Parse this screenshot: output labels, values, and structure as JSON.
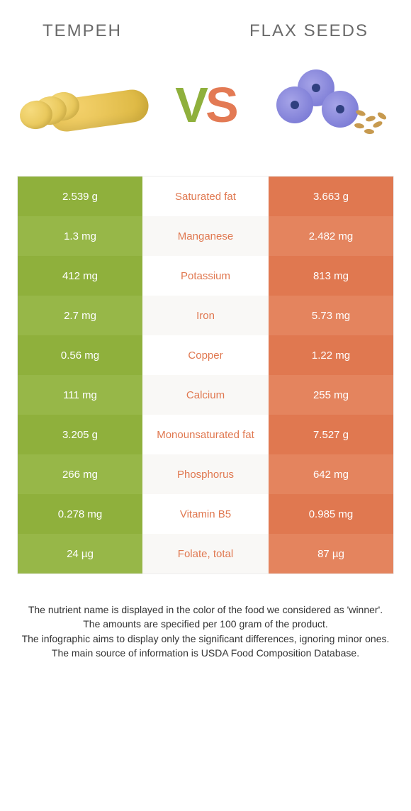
{
  "header": {
    "left_name": "Tempeh",
    "right_name": "Flax seeds"
  },
  "vs": {
    "v": "V",
    "s": "S"
  },
  "colors": {
    "left": "#8fb03c",
    "left_alt": "#97b748",
    "right": "#e07850",
    "right_alt": "#e4845e",
    "text": "#333333",
    "header_text": "#6a6a6a",
    "row_alt_bg": "#f9f8f6",
    "border": "#eeeeee"
  },
  "table": {
    "rows": [
      {
        "left": "2.539 g",
        "label": "Saturated fat",
        "right": "3.663 g",
        "winner": "right"
      },
      {
        "left": "1.3 mg",
        "label": "Manganese",
        "right": "2.482 mg",
        "winner": "right"
      },
      {
        "left": "412 mg",
        "label": "Potassium",
        "right": "813 mg",
        "winner": "right"
      },
      {
        "left": "2.7 mg",
        "label": "Iron",
        "right": "5.73 mg",
        "winner": "right"
      },
      {
        "left": "0.56 mg",
        "label": "Copper",
        "right": "1.22 mg",
        "winner": "right"
      },
      {
        "left": "111 mg",
        "label": "Calcium",
        "right": "255 mg",
        "winner": "right"
      },
      {
        "left": "3.205 g",
        "label": "Monounsaturated fat",
        "right": "7.527 g",
        "winner": "right"
      },
      {
        "left": "266 mg",
        "label": "Phosphorus",
        "right": "642 mg",
        "winner": "right"
      },
      {
        "left": "0.278 mg",
        "label": "Vitamin B5",
        "right": "0.985 mg",
        "winner": "right"
      },
      {
        "left": "24 µg",
        "label": "Folate, total",
        "right": "87 µg",
        "winner": "right"
      }
    ]
  },
  "footer": {
    "line1": "The nutrient name is displayed in the color of the food we considered as 'winner'.",
    "line2": "The amounts are specified per 100 gram of the product.",
    "line3": "The infographic aims to display only the significant differences, ignoring minor ones.",
    "line4": "The main source of information is USDA Food Composition Database."
  }
}
